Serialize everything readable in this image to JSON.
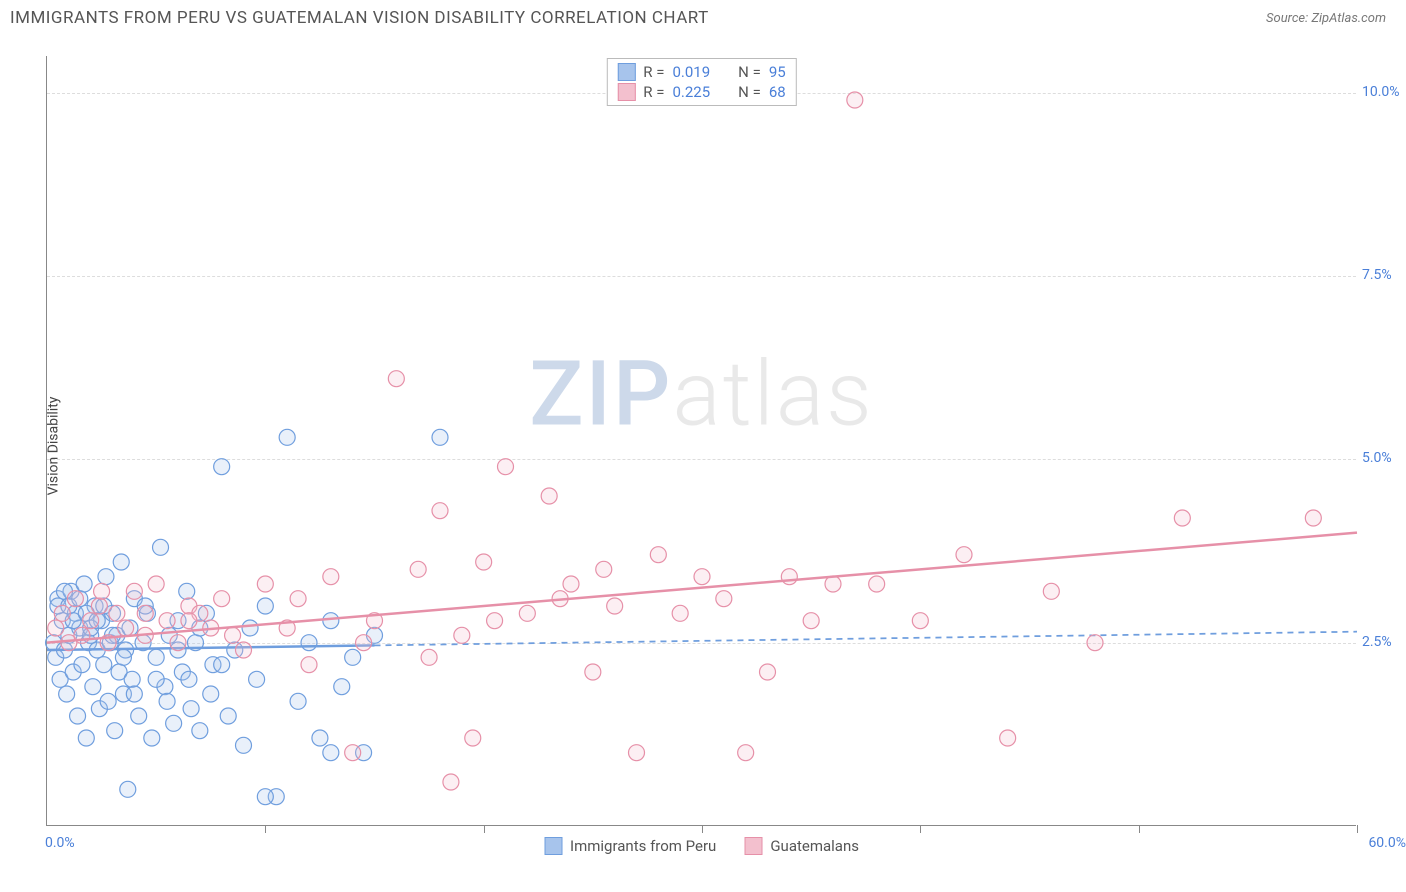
{
  "header": {
    "title": "IMMIGRANTS FROM PERU VS GUATEMALAN VISION DISABILITY CORRELATION CHART",
    "source_label": "Source:",
    "source_name": "ZipAtlas.com"
  },
  "chart": {
    "type": "scatter",
    "ylabel": "Vision Disability",
    "background_color": "#ffffff",
    "grid_color": "#dddddd",
    "axis_color": "#888888",
    "tick_label_color": "#4a7fd8",
    "label_fontsize": 14,
    "xlim": [
      0,
      60
    ],
    "ylim": [
      0,
      10.5
    ],
    "xtick_min_label": "0.0%",
    "xtick_max_label": "60.0%",
    "xtick_positions": [
      0,
      10,
      20,
      30,
      40,
      50,
      60
    ],
    "yticks": [
      {
        "v": 2.5,
        "label": "2.5%"
      },
      {
        "v": 5.0,
        "label": "5.0%"
      },
      {
        "v": 7.5,
        "label": "7.5%"
      },
      {
        "v": 10.0,
        "label": "10.0%"
      }
    ],
    "watermark": {
      "part1": "ZIP",
      "part2": "atlas"
    },
    "marker_radius": 8,
    "marker_fill_opacity": 0.25,
    "marker_stroke_width": 1.2,
    "line_width": 2.5,
    "dash_pattern": "6 5",
    "series": [
      {
        "key": "peru",
        "label": "Immigrants from Peru",
        "color_stroke": "#6f9ede",
        "color_fill": "#a7c4ec",
        "R": "0.019",
        "N": "95",
        "trend": {
          "x1": 0,
          "y1": 2.4,
          "x2": 60,
          "y2": 2.65,
          "solid_until_x": 15
        },
        "points": [
          [
            0.3,
            2.5
          ],
          [
            0.4,
            2.3
          ],
          [
            0.5,
            3.1
          ],
          [
            0.6,
            2.0
          ],
          [
            0.7,
            2.8
          ],
          [
            0.8,
            2.4
          ],
          [
            0.9,
            1.8
          ],
          [
            1.0,
            2.6
          ],
          [
            1.1,
            3.2
          ],
          [
            1.2,
            2.1
          ],
          [
            1.3,
            2.9
          ],
          [
            1.4,
            1.5
          ],
          [
            1.5,
            2.7
          ],
          [
            1.6,
            2.2
          ],
          [
            1.7,
            3.3
          ],
          [
            1.8,
            1.2
          ],
          [
            1.9,
            2.5
          ],
          [
            2.0,
            2.6
          ],
          [
            2.1,
            1.9
          ],
          [
            2.2,
            3.0
          ],
          [
            2.3,
            2.4
          ],
          [
            2.4,
            1.6
          ],
          [
            2.5,
            2.8
          ],
          [
            2.6,
            2.2
          ],
          [
            2.7,
            3.4
          ],
          [
            2.8,
            1.7
          ],
          [
            2.9,
            2.5
          ],
          [
            3.0,
            2.9
          ],
          [
            3.1,
            1.3
          ],
          [
            3.2,
            2.6
          ],
          [
            3.3,
            2.1
          ],
          [
            3.4,
            3.6
          ],
          [
            3.5,
            1.8
          ],
          [
            3.6,
            2.4
          ],
          [
            3.7,
            0.5
          ],
          [
            3.8,
            2.7
          ],
          [
            3.9,
            2.0
          ],
          [
            4.0,
            3.1
          ],
          [
            4.2,
            1.5
          ],
          [
            4.4,
            2.5
          ],
          [
            4.6,
            2.9
          ],
          [
            4.8,
            1.2
          ],
          [
            5.0,
            2.3
          ],
          [
            5.2,
            3.8
          ],
          [
            5.4,
            1.9
          ],
          [
            5.6,
            2.6
          ],
          [
            5.8,
            1.4
          ],
          [
            6.0,
            2.8
          ],
          [
            6.2,
            2.1
          ],
          [
            6.4,
            3.2
          ],
          [
            6.6,
            1.6
          ],
          [
            6.8,
            2.5
          ],
          [
            7.0,
            1.3
          ],
          [
            7.3,
            2.9
          ],
          [
            7.6,
            2.2
          ],
          [
            8.0,
            4.9
          ],
          [
            8.3,
            1.5
          ],
          [
            8.6,
            2.4
          ],
          [
            9.0,
            1.1
          ],
          [
            9.3,
            2.7
          ],
          [
            9.6,
            2.0
          ],
          [
            10.0,
            3.0
          ],
          [
            10.5,
            0.4
          ],
          [
            11.0,
            5.3
          ],
          [
            11.5,
            1.7
          ],
          [
            12.0,
            2.5
          ],
          [
            12.5,
            1.2
          ],
          [
            13.0,
            2.8
          ],
          [
            13.5,
            1.9
          ],
          [
            14.0,
            2.3
          ],
          [
            14.5,
            1.0
          ],
          [
            15.0,
            2.6
          ],
          [
            0.5,
            3.0
          ],
          [
            0.8,
            3.2
          ],
          [
            1.0,
            3.0
          ],
          [
            1.2,
            2.8
          ],
          [
            1.5,
            3.1
          ],
          [
            1.8,
            2.9
          ],
          [
            2.0,
            2.7
          ],
          [
            2.3,
            2.8
          ],
          [
            2.6,
            3.0
          ],
          [
            3.0,
            2.6
          ],
          [
            3.5,
            2.3
          ],
          [
            4.0,
            1.8
          ],
          [
            4.5,
            3.0
          ],
          [
            5.0,
            2.0
          ],
          [
            5.5,
            1.7
          ],
          [
            6.0,
            2.4
          ],
          [
            6.5,
            2.0
          ],
          [
            7.0,
            2.7
          ],
          [
            7.5,
            1.8
          ],
          [
            8.0,
            2.2
          ],
          [
            18.0,
            5.3
          ],
          [
            13.0,
            1.0
          ],
          [
            10.0,
            0.4
          ]
        ]
      },
      {
        "key": "guat",
        "label": "Guatemalans",
        "color_stroke": "#e690a8",
        "color_fill": "#f3c0ce",
        "R": "0.225",
        "N": "68",
        "trend": {
          "x1": 0,
          "y1": 2.5,
          "x2": 60,
          "y2": 4.0,
          "solid_until_x": 60
        },
        "points": [
          [
            0.4,
            2.7
          ],
          [
            0.7,
            2.9
          ],
          [
            1.0,
            2.5
          ],
          [
            1.3,
            3.1
          ],
          [
            1.6,
            2.6
          ],
          [
            2.0,
            2.8
          ],
          [
            2.4,
            3.0
          ],
          [
            2.8,
            2.5
          ],
          [
            3.2,
            2.9
          ],
          [
            3.6,
            2.7
          ],
          [
            4.0,
            3.2
          ],
          [
            4.5,
            2.6
          ],
          [
            5.0,
            3.3
          ],
          [
            5.5,
            2.8
          ],
          [
            6.0,
            2.5
          ],
          [
            6.5,
            3.0
          ],
          [
            7.0,
            2.9
          ],
          [
            7.5,
            2.7
          ],
          [
            8.0,
            3.1
          ],
          [
            9.0,
            2.4
          ],
          [
            10.0,
            3.3
          ],
          [
            11.0,
            2.7
          ],
          [
            12.0,
            2.2
          ],
          [
            13.0,
            3.4
          ],
          [
            14.0,
            1.0
          ],
          [
            15.0,
            2.8
          ],
          [
            16.0,
            6.1
          ],
          [
            17.0,
            3.5
          ],
          [
            18.0,
            4.3
          ],
          [
            18.5,
            0.6
          ],
          [
            19.0,
            2.6
          ],
          [
            19.5,
            1.2
          ],
          [
            20.0,
            3.6
          ],
          [
            21.0,
            4.9
          ],
          [
            22.0,
            2.9
          ],
          [
            23.0,
            4.5
          ],
          [
            24.0,
            3.3
          ],
          [
            25.0,
            2.1
          ],
          [
            25.5,
            3.5
          ],
          [
            26.0,
            3.0
          ],
          [
            27.0,
            1.0
          ],
          [
            28.0,
            3.7
          ],
          [
            29.0,
            2.9
          ],
          [
            30.0,
            3.4
          ],
          [
            31.0,
            3.1
          ],
          [
            32.0,
            1.0
          ],
          [
            33.0,
            2.1
          ],
          [
            34.0,
            3.4
          ],
          [
            35.0,
            2.8
          ],
          [
            36.0,
            3.3
          ],
          [
            37.0,
            9.9
          ],
          [
            38.0,
            3.3
          ],
          [
            40.0,
            2.8
          ],
          [
            42.0,
            3.7
          ],
          [
            44.0,
            1.2
          ],
          [
            46.0,
            3.2
          ],
          [
            48.0,
            2.5
          ],
          [
            52.0,
            4.2
          ],
          [
            58.0,
            4.2
          ],
          [
            2.5,
            3.2
          ],
          [
            4.5,
            2.9
          ],
          [
            6.5,
            2.8
          ],
          [
            8.5,
            2.6
          ],
          [
            11.5,
            3.1
          ],
          [
            14.5,
            2.5
          ],
          [
            17.5,
            2.3
          ],
          [
            20.5,
            2.8
          ],
          [
            23.5,
            3.1
          ]
        ]
      }
    ]
  },
  "legend_top": {
    "r_label": "R =",
    "n_label": "N ="
  }
}
